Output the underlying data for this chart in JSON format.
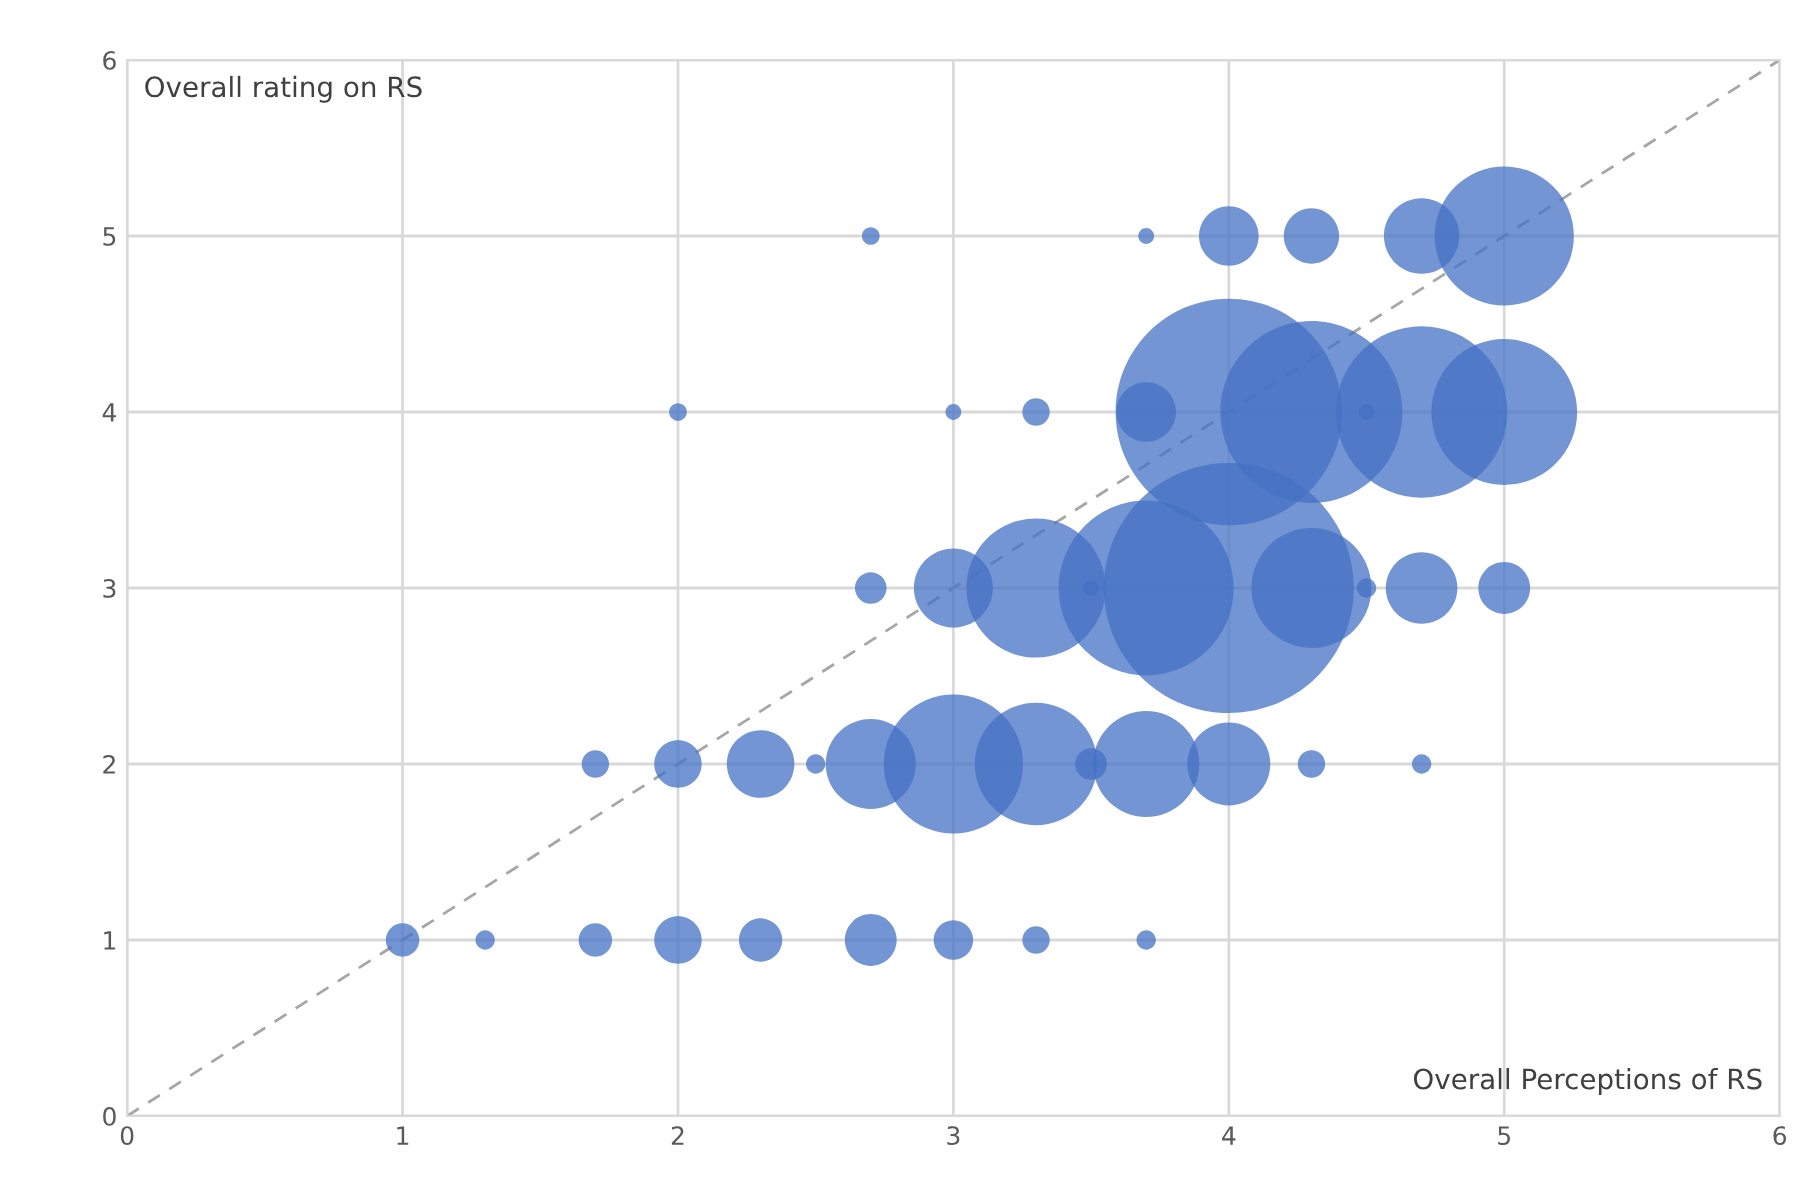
{
  "chart_data": {
    "type": "bubble",
    "xlabel": "Overall Perceptions of RS",
    "ylabel": "Overall rating on RS",
    "xlim": [
      0,
      6
    ],
    "ylim": [
      0,
      6
    ],
    "xticks": [
      0,
      1,
      2,
      3,
      4,
      5,
      6
    ],
    "yticks": [
      0,
      1,
      2,
      3,
      4,
      5,
      6
    ],
    "grid": true,
    "series": [
      {
        "color": "#4472c4",
        "x": [
          2.7,
          3.7,
          4,
          4.3,
          4.7,
          5,
          2,
          3,
          3.3,
          3.7,
          4,
          4.3,
          4.5,
          4.7,
          5,
          2.7,
          3,
          3.3,
          3.5,
          3.7,
          4,
          4.3,
          4.5,
          4.7,
          5,
          1.7,
          2,
          2.3,
          2.5,
          2.7,
          3,
          3.3,
          3.5,
          3.7,
          4,
          4.3,
          4.7,
          1,
          1.3,
          1.7,
          2,
          2.3,
          2.7,
          3,
          3.3,
          3.7
        ],
        "values": [
          5,
          5,
          5,
          5,
          5,
          5,
          4,
          4,
          4,
          4,
          4,
          4,
          4,
          4,
          4,
          3,
          3,
          3,
          3,
          3,
          3,
          3,
          3,
          3,
          3,
          2,
          2,
          2,
          2,
          2,
          2,
          2,
          2,
          2,
          2,
          2,
          2,
          1,
          1,
          1,
          1,
          1,
          1,
          1,
          1,
          1
        ],
        "sizes": [
          0.005,
          0.004,
          0.057,
          0.049,
          0.091,
          0.31,
          0.005,
          0.004,
          0.012,
          0.057,
          0.82,
          0.53,
          0.004,
          0.47,
          0.34,
          0.016,
          0.1,
          0.31,
          0.004,
          0.49,
          1,
          0.23,
          0.006,
          0.082,
          0.043,
          0.012,
          0.036,
          0.073,
          0.006,
          0.13,
          0.31,
          0.24,
          0.016,
          0.18,
          0.11,
          0.012,
          0.006,
          0.018,
          0.006,
          0.018,
          0.036,
          0.03,
          0.043,
          0.025,
          0.012,
          0.006
        ]
      },
      {
        "type": "line",
        "color": "#a6a6a6",
        "line_style": "dashed",
        "x": [
          0,
          6
        ],
        "values": [
          0,
          6
        ]
      }
    ]
  }
}
